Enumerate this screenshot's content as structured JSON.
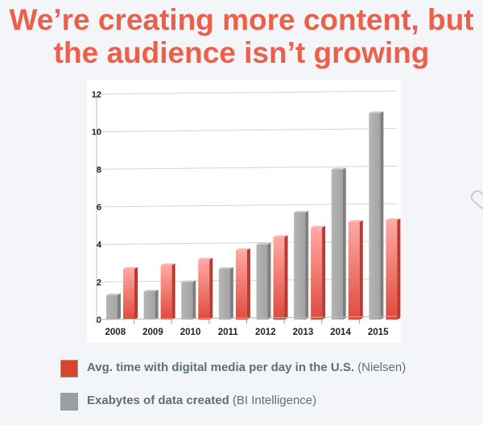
{
  "title": {
    "line1": "We’re creating more content, but",
    "line2": "the audience isn’t growing"
  },
  "chart_data": {
    "type": "bar",
    "categories": [
      "2008",
      "2009",
      "2010",
      "2011",
      "2012",
      "2013",
      "2014",
      "2015"
    ],
    "series": [
      {
        "name": "Exabytes of data created",
        "source": "(BI Intelligence)",
        "color": "#a9a9a9",
        "values": [
          1.3,
          1.5,
          2.0,
          2.7,
          4.0,
          5.7,
          8.0,
          11.0
        ]
      },
      {
        "name": "Avg. time with digital media per day in the U.S.",
        "source": "(Nielsen)",
        "color": "#e8564a",
        "values": [
          2.7,
          2.9,
          3.2,
          3.7,
          4.4,
          4.9,
          5.2,
          5.3
        ]
      }
    ],
    "yticks": [
      "0",
      "2",
      "4",
      "6",
      "8",
      "10",
      "12"
    ],
    "ylim": [
      0,
      12
    ],
    "grid": true,
    "legend": "bottom",
    "style": "3d"
  },
  "legend": [
    {
      "label": "Avg. time with digital media per day in the U.S.",
      "source": "(Nielsen)",
      "color": "#d9442b"
    },
    {
      "label": "Exabytes of data created",
      "source": "(BI Intelligence)",
      "color": "#97a1a0"
    }
  ],
  "icons": {
    "decoration": "paperclip-icon"
  }
}
